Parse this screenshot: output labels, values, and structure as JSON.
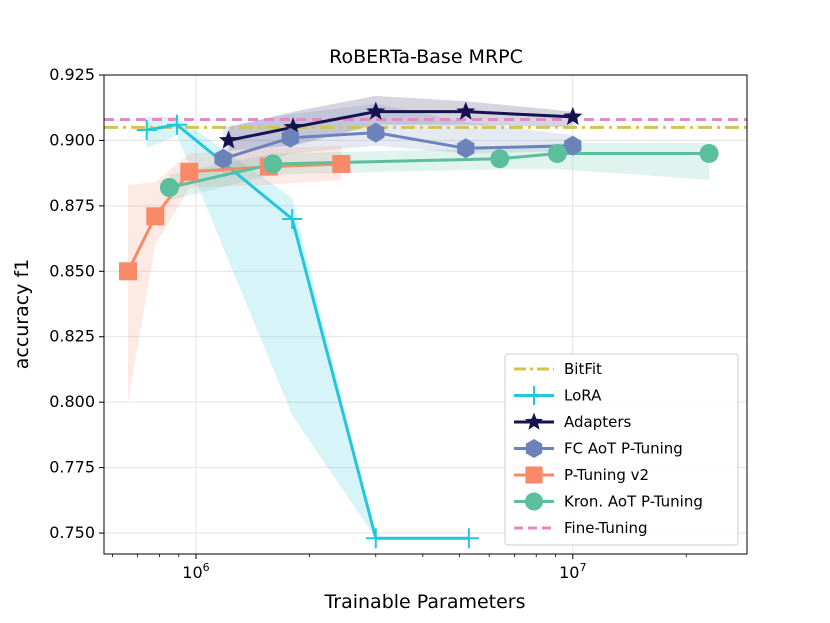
{
  "chart_data": {
    "type": "line",
    "title": "RoBERTa-Base MRPC",
    "xlabel": "Trainable Parameters",
    "ylabel": "accuracy f1",
    "xscale": "log",
    "xlim": [
      570000,
      29000000
    ],
    "ylim": [
      0.742,
      0.925
    ],
    "x_ticks": [
      {
        "value": 1000000,
        "base": "10",
        "exp": "6"
      },
      {
        "value": 10000000,
        "base": "10",
        "exp": "7"
      }
    ],
    "y_ticks": [
      0.925,
      0.9,
      0.875,
      0.85,
      0.825,
      0.8,
      0.775,
      0.75
    ],
    "y_tick_labels": [
      "0.925",
      "0.900",
      "0.875",
      "0.850",
      "0.825",
      "0.800",
      "0.775",
      "0.750"
    ],
    "grid": true,
    "legend_position": "lower-right",
    "hlines": [
      {
        "name": "BitFit",
        "y": 0.905,
        "color": "#d4c44b",
        "style": "dashdot"
      },
      {
        "name": "Fine-Tuning",
        "y": 0.908,
        "color": "#e588c4",
        "style": "dashed"
      }
    ],
    "series": [
      {
        "name": "LoRA",
        "color": "#22c7dc",
        "marker": "plus",
        "x": [
          740000,
          890000,
          1800000,
          3000000,
          5300000
        ],
        "y": [
          0.904,
          0.906,
          0.87,
          0.748,
          0.748
        ],
        "lower": [
          0.897,
          0.902,
          0.795,
          0.748,
          0.748
        ],
        "upper": [
          0.909,
          0.909,
          0.878,
          0.748,
          0.748
        ]
      },
      {
        "name": "Adapters",
        "color": "#16124f",
        "marker": "star",
        "x": [
          1220000,
          1810000,
          3000000,
          5200000,
          10000000
        ],
        "y": [
          0.9,
          0.905,
          0.911,
          0.911,
          0.909
        ],
        "lower": [
          0.896,
          0.898,
          0.906,
          0.906,
          0.905
        ],
        "upper": [
          0.905,
          0.911,
          0.917,
          0.915,
          0.911
        ]
      },
      {
        "name": "FC AoT P-Tuning",
        "color": "#6b83b9",
        "marker": "hexagon",
        "x": [
          1180000,
          1780000,
          3000000,
          5200000,
          10000000
        ],
        "y": [
          0.893,
          0.901,
          0.903,
          0.897,
          0.898
        ],
        "lower": [
          0.886,
          0.895,
          0.898,
          0.895,
          0.896
        ],
        "upper": [
          0.905,
          0.91,
          0.914,
          0.907,
          0.902
        ]
      },
      {
        "name": "P-Tuning v2",
        "color": "#f98a67",
        "marker": "square",
        "x": [
          660000,
          780000,
          960000,
          1560000,
          2430000
        ],
        "y": [
          0.85,
          0.871,
          0.888,
          0.89,
          0.891
        ],
        "lower": [
          0.8,
          0.86,
          0.882,
          0.883,
          0.885
        ],
        "upper": [
          0.883,
          0.884,
          0.895,
          0.897,
          0.898
        ]
      },
      {
        "name": "Kron. AoT P-Tuning",
        "color": "#5bbf9e",
        "marker": "circle",
        "x": [
          850000,
          1600000,
          6400000,
          9100000,
          23000000
        ],
        "y": [
          0.882,
          0.891,
          0.893,
          0.895,
          0.895
        ],
        "lower": [
          0.877,
          0.887,
          0.889,
          0.889,
          0.885
        ],
        "upper": [
          0.887,
          0.895,
          0.897,
          0.899,
          0.899
        ]
      }
    ],
    "legend_entries": [
      "BitFit",
      "LoRA",
      "Adapters",
      "FC AoT P-Tuning",
      "P-Tuning v2",
      "Kron. AoT P-Tuning",
      "Fine-Tuning"
    ]
  }
}
